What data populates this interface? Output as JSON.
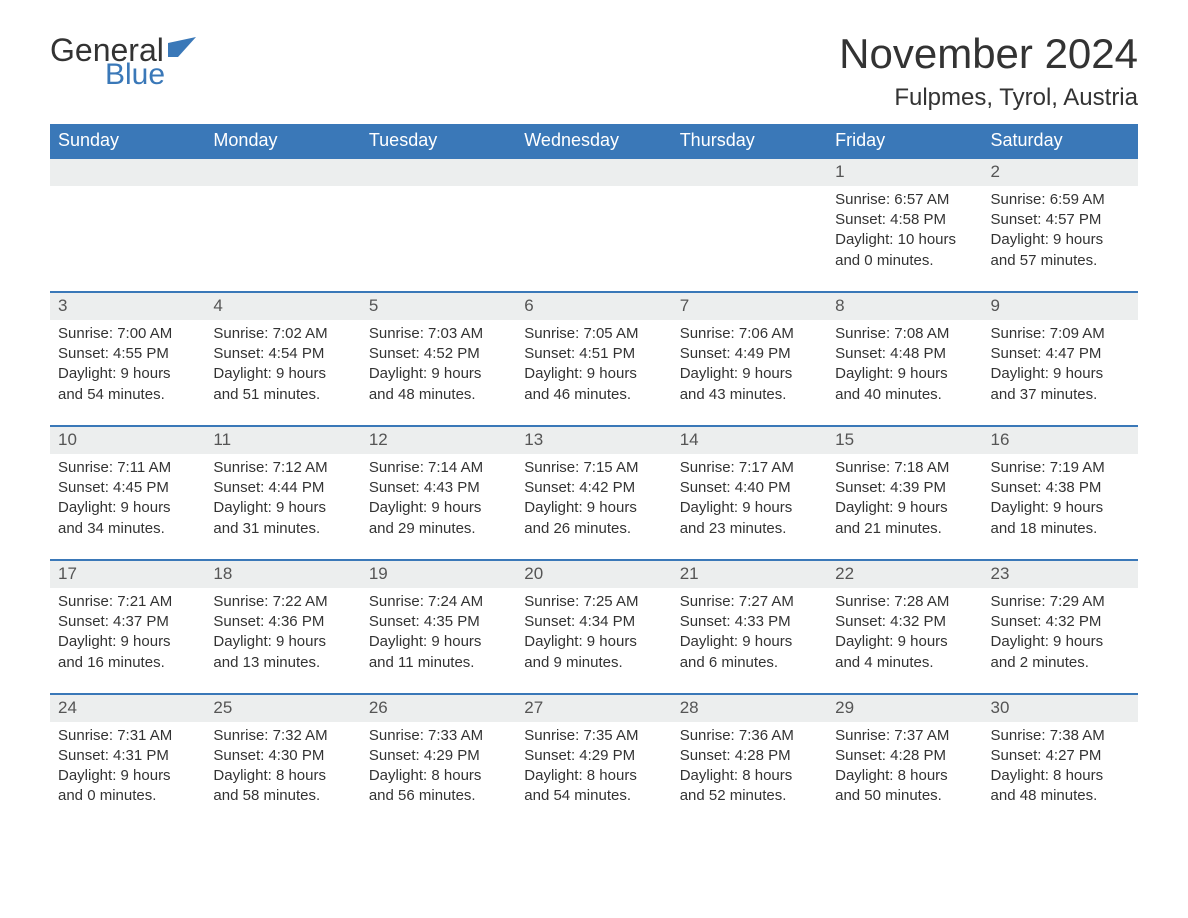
{
  "logo": {
    "word1": "General",
    "word2": "Blue",
    "accent_color": "#3a78b8"
  },
  "title": "November 2024",
  "location": "Fulpmes, Tyrol, Austria",
  "colors": {
    "header_bg": "#3a78b8",
    "header_text": "#ffffff",
    "daybar_bg": "#eceeee",
    "border": "#3a78b8",
    "body_text": "#333333",
    "page_bg": "#ffffff"
  },
  "weekdays": [
    "Sunday",
    "Monday",
    "Tuesday",
    "Wednesday",
    "Thursday",
    "Friday",
    "Saturday"
  ],
  "weeks": [
    [
      null,
      null,
      null,
      null,
      null,
      {
        "n": "1",
        "sunrise": "6:57 AM",
        "sunset": "4:58 PM",
        "dl_h": "10",
        "dl_m": "0"
      },
      {
        "n": "2",
        "sunrise": "6:59 AM",
        "sunset": "4:57 PM",
        "dl_h": "9",
        "dl_m": "57"
      }
    ],
    [
      {
        "n": "3",
        "sunrise": "7:00 AM",
        "sunset": "4:55 PM",
        "dl_h": "9",
        "dl_m": "54"
      },
      {
        "n": "4",
        "sunrise": "7:02 AM",
        "sunset": "4:54 PM",
        "dl_h": "9",
        "dl_m": "51"
      },
      {
        "n": "5",
        "sunrise": "7:03 AM",
        "sunset": "4:52 PM",
        "dl_h": "9",
        "dl_m": "48"
      },
      {
        "n": "6",
        "sunrise": "7:05 AM",
        "sunset": "4:51 PM",
        "dl_h": "9",
        "dl_m": "46"
      },
      {
        "n": "7",
        "sunrise": "7:06 AM",
        "sunset": "4:49 PM",
        "dl_h": "9",
        "dl_m": "43"
      },
      {
        "n": "8",
        "sunrise": "7:08 AM",
        "sunset": "4:48 PM",
        "dl_h": "9",
        "dl_m": "40"
      },
      {
        "n": "9",
        "sunrise": "7:09 AM",
        "sunset": "4:47 PM",
        "dl_h": "9",
        "dl_m": "37"
      }
    ],
    [
      {
        "n": "10",
        "sunrise": "7:11 AM",
        "sunset": "4:45 PM",
        "dl_h": "9",
        "dl_m": "34"
      },
      {
        "n": "11",
        "sunrise": "7:12 AM",
        "sunset": "4:44 PM",
        "dl_h": "9",
        "dl_m": "31"
      },
      {
        "n": "12",
        "sunrise": "7:14 AM",
        "sunset": "4:43 PM",
        "dl_h": "9",
        "dl_m": "29"
      },
      {
        "n": "13",
        "sunrise": "7:15 AM",
        "sunset": "4:42 PM",
        "dl_h": "9",
        "dl_m": "26"
      },
      {
        "n": "14",
        "sunrise": "7:17 AM",
        "sunset": "4:40 PM",
        "dl_h": "9",
        "dl_m": "23"
      },
      {
        "n": "15",
        "sunrise": "7:18 AM",
        "sunset": "4:39 PM",
        "dl_h": "9",
        "dl_m": "21"
      },
      {
        "n": "16",
        "sunrise": "7:19 AM",
        "sunset": "4:38 PM",
        "dl_h": "9",
        "dl_m": "18"
      }
    ],
    [
      {
        "n": "17",
        "sunrise": "7:21 AM",
        "sunset": "4:37 PM",
        "dl_h": "9",
        "dl_m": "16"
      },
      {
        "n": "18",
        "sunrise": "7:22 AM",
        "sunset": "4:36 PM",
        "dl_h": "9",
        "dl_m": "13"
      },
      {
        "n": "19",
        "sunrise": "7:24 AM",
        "sunset": "4:35 PM",
        "dl_h": "9",
        "dl_m": "11"
      },
      {
        "n": "20",
        "sunrise": "7:25 AM",
        "sunset": "4:34 PM",
        "dl_h": "9",
        "dl_m": "9"
      },
      {
        "n": "21",
        "sunrise": "7:27 AM",
        "sunset": "4:33 PM",
        "dl_h": "9",
        "dl_m": "6"
      },
      {
        "n": "22",
        "sunrise": "7:28 AM",
        "sunset": "4:32 PM",
        "dl_h": "9",
        "dl_m": "4"
      },
      {
        "n": "23",
        "sunrise": "7:29 AM",
        "sunset": "4:32 PM",
        "dl_h": "9",
        "dl_m": "2"
      }
    ],
    [
      {
        "n": "24",
        "sunrise": "7:31 AM",
        "sunset": "4:31 PM",
        "dl_h": "9",
        "dl_m": "0"
      },
      {
        "n": "25",
        "sunrise": "7:32 AM",
        "sunset": "4:30 PM",
        "dl_h": "8",
        "dl_m": "58"
      },
      {
        "n": "26",
        "sunrise": "7:33 AM",
        "sunset": "4:29 PM",
        "dl_h": "8",
        "dl_m": "56"
      },
      {
        "n": "27",
        "sunrise": "7:35 AM",
        "sunset": "4:29 PM",
        "dl_h": "8",
        "dl_m": "54"
      },
      {
        "n": "28",
        "sunrise": "7:36 AM",
        "sunset": "4:28 PM",
        "dl_h": "8",
        "dl_m": "52"
      },
      {
        "n": "29",
        "sunrise": "7:37 AM",
        "sunset": "4:28 PM",
        "dl_h": "8",
        "dl_m": "50"
      },
      {
        "n": "30",
        "sunrise": "7:38 AM",
        "sunset": "4:27 PM",
        "dl_h": "8",
        "dl_m": "48"
      }
    ]
  ],
  "labels": {
    "sunrise": "Sunrise: ",
    "sunset": "Sunset: ",
    "daylight_prefix": "Daylight: ",
    "hours_word": " hours",
    "and_word": "and ",
    "minutes_word": " minutes."
  }
}
